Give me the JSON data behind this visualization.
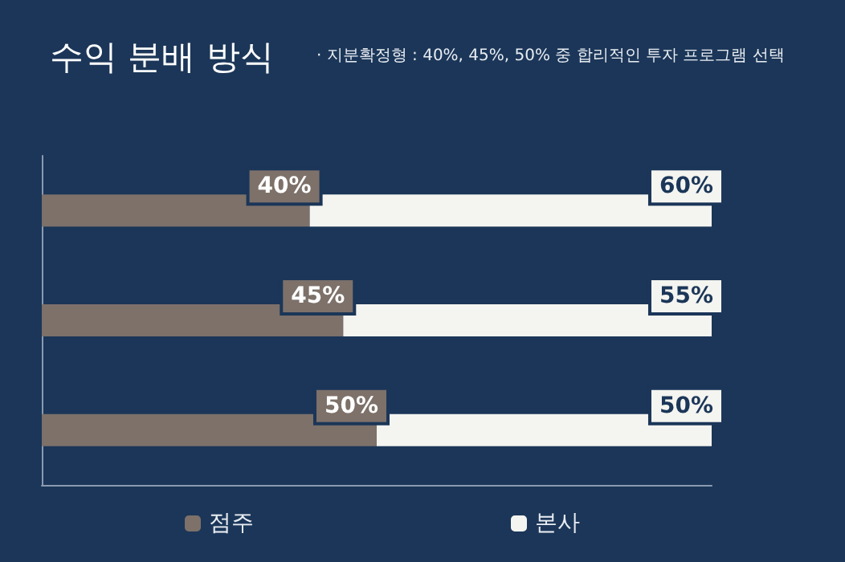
{
  "chart_data": {
    "type": "bar",
    "orientation": "horizontal",
    "stacked": true,
    "title": "수익 분배 방식",
    "subtitle": "· 지분확정형 : 40%, 45%, 50% 중 합리적인 투자 프로그램 선택",
    "categories": [
      null,
      null,
      null
    ],
    "series": [
      {
        "name": "점주",
        "color": "#7d716a",
        "values": [
          40,
          45,
          50
        ],
        "value_labels": [
          "40%",
          "45%",
          "50%"
        ]
      },
      {
        "name": "본사",
        "color": "#f4f4f0",
        "values": [
          60,
          55,
          50
        ],
        "value_labels": [
          "60%",
          "55%",
          "50%"
        ]
      }
    ],
    "relative": false,
    "tick_labels": false,
    "grid": false,
    "legend": "bottom"
  }
}
